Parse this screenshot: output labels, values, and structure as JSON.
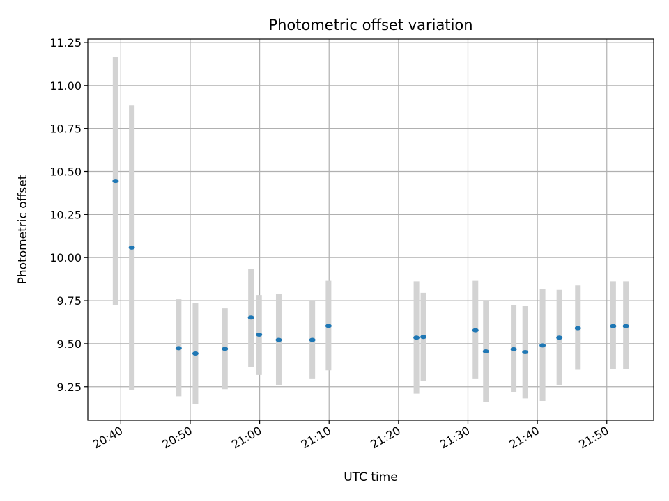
{
  "chart_data": {
    "type": "scatter",
    "title": "Photometric offset variation",
    "xlabel": "UTC time",
    "ylabel": "Photometric offset",
    "xlim": [
      "20:35:15",
      "21:56:45"
    ],
    "ylim": [
      9.055,
      11.27
    ],
    "grid": true,
    "x_ticks": [
      "20:40",
      "20:50",
      "21:00",
      "21:10",
      "21:20",
      "21:30",
      "21:40",
      "21:50"
    ],
    "y_ticks": [
      "9.25",
      "9.50",
      "9.75",
      "10.00",
      "10.25",
      "10.50",
      "10.75",
      "11.00",
      "11.25"
    ],
    "colors": {
      "marker": "#1f77b4",
      "errorbar": "#d3d3d3"
    },
    "series": [
      {
        "points": [
          {
            "x": "20:39:15",
            "y": 10.445,
            "ylow": 9.725,
            "yhigh": 11.165
          },
          {
            "x": "20:41:35",
            "y": 10.058,
            "ylow": 9.232,
            "yhigh": 10.885
          },
          {
            "x": "20:48:20",
            "y": 9.474,
            "ylow": 9.195,
            "yhigh": 9.758
          },
          {
            "x": "20:50:45",
            "y": 9.443,
            "ylow": 9.15,
            "yhigh": 9.735
          },
          {
            "x": "20:55:00",
            "y": 9.47,
            "ylow": 9.236,
            "yhigh": 9.705
          },
          {
            "x": "20:58:45",
            "y": 9.652,
            "ylow": 9.365,
            "yhigh": 9.935
          },
          {
            "x": "20:59:55",
            "y": 9.552,
            "ylow": 9.318,
            "yhigh": 9.782
          },
          {
            "x": "21:02:45",
            "y": 9.522,
            "ylow": 9.258,
            "yhigh": 9.79
          },
          {
            "x": "21:07:35",
            "y": 9.522,
            "ylow": 9.298,
            "yhigh": 9.748
          },
          {
            "x": "21:09:55",
            "y": 9.603,
            "ylow": 9.345,
            "yhigh": 9.865
          },
          {
            "x": "21:22:35",
            "y": 9.535,
            "ylow": 9.21,
            "yhigh": 9.862
          },
          {
            "x": "21:23:35",
            "y": 9.539,
            "ylow": 9.282,
            "yhigh": 9.795
          },
          {
            "x": "21:31:05",
            "y": 9.578,
            "ylow": 9.298,
            "yhigh": 9.865
          },
          {
            "x": "21:32:35",
            "y": 9.455,
            "ylow": 9.16,
            "yhigh": 9.748
          },
          {
            "x": "21:36:35",
            "y": 9.468,
            "ylow": 9.218,
            "yhigh": 9.722
          },
          {
            "x": "21:38:15",
            "y": 9.451,
            "ylow": 9.183,
            "yhigh": 9.718
          },
          {
            "x": "21:40:45",
            "y": 9.49,
            "ylow": 9.168,
            "yhigh": 9.818
          },
          {
            "x": "21:43:10",
            "y": 9.535,
            "ylow": 9.26,
            "yhigh": 9.812
          },
          {
            "x": "21:45:50",
            "y": 9.59,
            "ylow": 9.348,
            "yhigh": 9.838
          },
          {
            "x": "21:50:55",
            "y": 9.602,
            "ylow": 9.352,
            "yhigh": 9.862
          },
          {
            "x": "21:52:45",
            "y": 9.602,
            "ylow": 9.352,
            "yhigh": 9.862
          }
        ]
      }
    ]
  }
}
